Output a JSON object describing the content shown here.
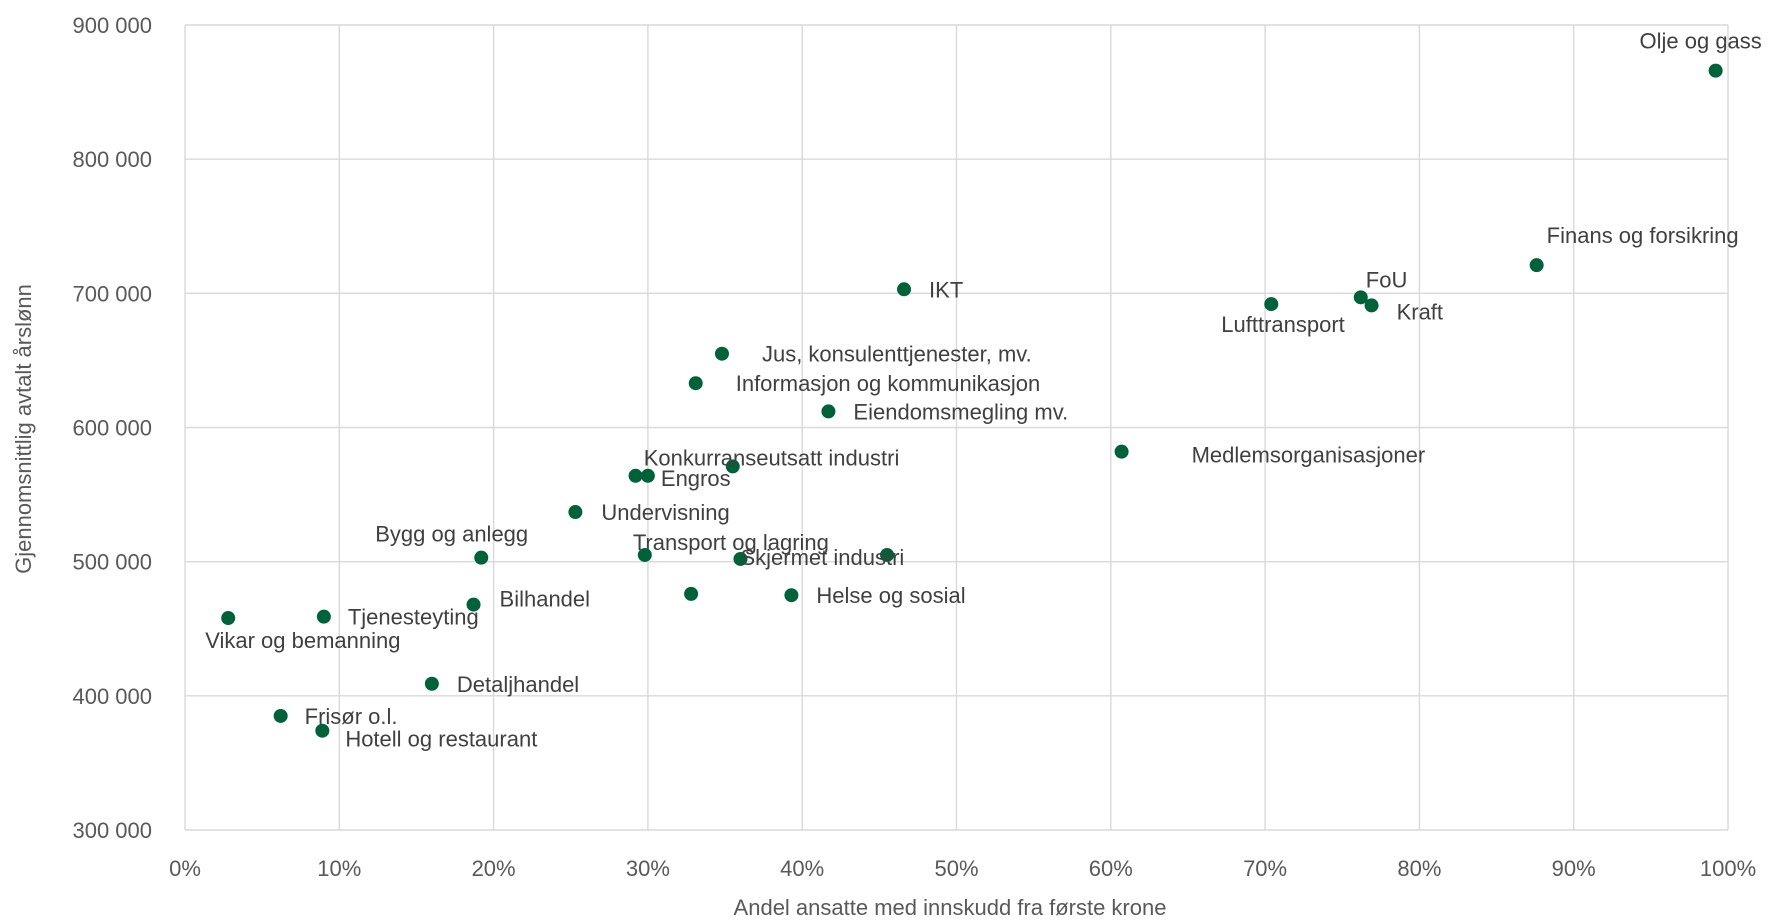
{
  "chart_data": {
    "type": "scatter",
    "title": "",
    "xlabel": "Andel ansatte med innskudd  fra første krone",
    "ylabel": "Gjennomsnittlig  avtalt årslønn",
    "xlim": [
      0,
      1
    ],
    "ylim": [
      300000,
      900000
    ],
    "grid": true,
    "x_ticks": [
      "0%",
      "10%",
      "20%",
      "30%",
      "40%",
      "50%",
      "60%",
      "70%",
      "80%",
      "90%",
      "100%"
    ],
    "y_ticks": [
      "300 000",
      "400 000",
      "500 000",
      "600 000",
      "700 000",
      "800 000",
      "900 000"
    ],
    "point_color": "#00613a",
    "points": [
      {
        "label": "Olje og gass",
        "x": 0.992,
        "y": 866000
      },
      {
        "label": "Finans og forsikring",
        "x": 0.876,
        "y": 721000
      },
      {
        "label": "FoU",
        "x": 0.762,
        "y": 697000
      },
      {
        "label": "Kraft",
        "x": 0.769,
        "y": 691000
      },
      {
        "label": "Lufttransport",
        "x": 0.704,
        "y": 692000
      },
      {
        "label": "IKT",
        "x": 0.466,
        "y": 703000
      },
      {
        "label": "Jus, konsulenttjenester,  mv.",
        "x": 0.348,
        "y": 655000
      },
      {
        "label": "Informasjon og kommunikasjon",
        "x": 0.331,
        "y": 633000
      },
      {
        "label": "Eiendomsmegling  mv.",
        "x": 0.417,
        "y": 612000
      },
      {
        "label": "Medlemsorganisasjoner",
        "x": 0.607,
        "y": 582000
      },
      {
        "label": "Konkurranseutsatt  industri",
        "x": 0.355,
        "y": 571000
      },
      {
        "label": "",
        "x": 0.292,
        "y": 564000
      },
      {
        "label": "Engros",
        "x": 0.3,
        "y": 564000
      },
      {
        "label": "Undervisning",
        "x": 0.253,
        "y": 537000
      },
      {
        "label": "Bygg og anlegg",
        "x": 0.192,
        "y": 503000
      },
      {
        "label": "Transport og lagring",
        "x": 0.298,
        "y": 505000
      },
      {
        "label": "Skjermet industri",
        "x": 0.36,
        "y": 502000
      },
      {
        "label": "",
        "x": 0.455,
        "y": 505000
      },
      {
        "label": "",
        "x": 0.328,
        "y": 476000
      },
      {
        "label": "Helse og sosial",
        "x": 0.393,
        "y": 475000
      },
      {
        "label": "Bilhandel",
        "x": 0.187,
        "y": 468000
      },
      {
        "label": "Tjenesteyting",
        "x": 0.09,
        "y": 459000
      },
      {
        "label": "Vikar og bemanning",
        "x": 0.028,
        "y": 458000
      },
      {
        "label": "Detaljhandel",
        "x": 0.16,
        "y": 409000
      },
      {
        "label": "Frisør o.l.",
        "x": 0.062,
        "y": 385000
      },
      {
        "label": "Hotell og restaurant",
        "x": 0.089,
        "y": 374000
      }
    ]
  }
}
